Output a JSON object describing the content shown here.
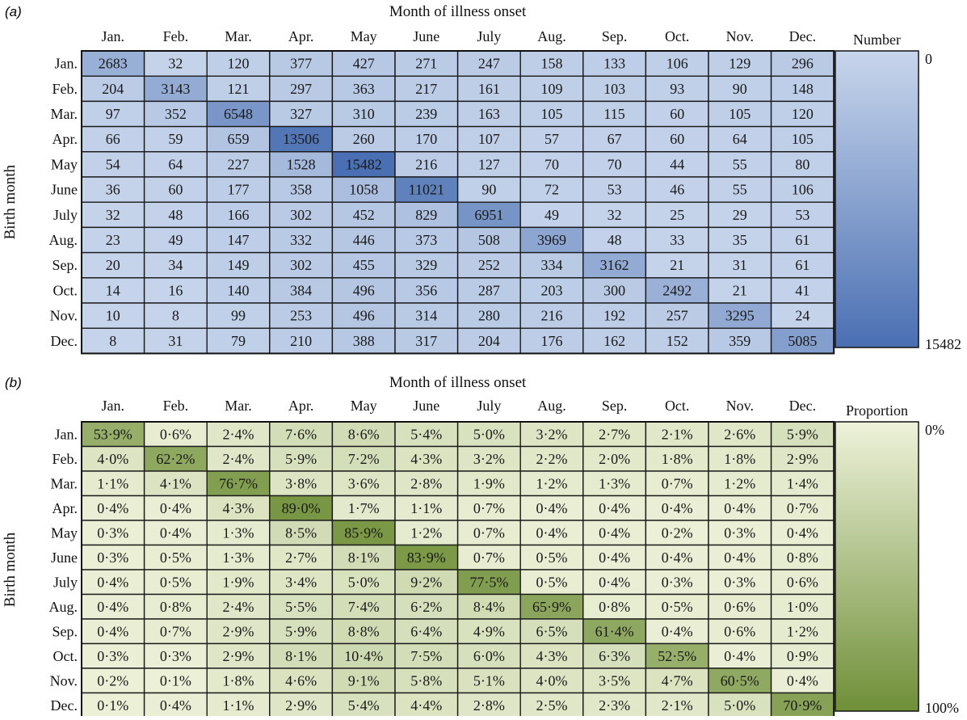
{
  "chart_data": [
    {
      "type": "heatmap",
      "panel_label": "(a)",
      "xlabel": "Month of illness onset",
      "ylabel": "Birth month",
      "x_categories": [
        "Jan.",
        "Feb.",
        "Mar.",
        "Apr.",
        "May",
        "June",
        "July",
        "Aug.",
        "Sep.",
        "Oct.",
        "Nov.",
        "Dec."
      ],
      "y_categories": [
        "Jan.",
        "Feb.",
        "Mar.",
        "Apr.",
        "May",
        "June",
        "July",
        "Aug.",
        "Sep.",
        "Oct.",
        "Nov.",
        "Dec."
      ],
      "values": [
        [
          2683,
          32,
          120,
          377,
          427,
          271,
          247,
          158,
          133,
          106,
          129,
          296
        ],
        [
          204,
          3143,
          121,
          297,
          363,
          217,
          161,
          109,
          103,
          93,
          90,
          148
        ],
        [
          97,
          352,
          6548,
          327,
          310,
          239,
          163,
          105,
          115,
          60,
          105,
          120
        ],
        [
          66,
          59,
          659,
          13506,
          260,
          170,
          107,
          57,
          67,
          60,
          64,
          105
        ],
        [
          54,
          64,
          227,
          1528,
          15482,
          216,
          127,
          70,
          70,
          44,
          55,
          80
        ],
        [
          36,
          60,
          177,
          358,
          1058,
          11021,
          90,
          72,
          53,
          46,
          55,
          106
        ],
        [
          32,
          48,
          166,
          302,
          452,
          829,
          6951,
          49,
          32,
          25,
          29,
          53
        ],
        [
          23,
          49,
          147,
          332,
          446,
          373,
          508,
          3969,
          48,
          33,
          35,
          61
        ],
        [
          20,
          34,
          149,
          302,
          455,
          329,
          252,
          334,
          3162,
          21,
          31,
          61
        ],
        [
          14,
          16,
          140,
          384,
          496,
          356,
          287,
          203,
          300,
          2492,
          21,
          41
        ],
        [
          10,
          8,
          99,
          253,
          496,
          314,
          280,
          216,
          192,
          257,
          3295,
          24
        ],
        [
          8,
          31,
          79,
          210,
          388,
          317,
          204,
          176,
          162,
          152,
          359,
          5085
        ]
      ],
      "value_format": "integer",
      "colorbar": {
        "title": "Number",
        "min_label": "0",
        "max_label": "15482",
        "min": 0,
        "max": 15482
      },
      "colors": {
        "low": "#c8d6ec",
        "high": "#4a6fb2"
      }
    },
    {
      "type": "heatmap",
      "panel_label": "(b)",
      "xlabel": "Month of illness onset",
      "ylabel": "Birth month",
      "x_categories": [
        "Jan.",
        "Feb.",
        "Mar.",
        "Apr.",
        "May",
        "June",
        "July",
        "Aug.",
        "Sep.",
        "Oct.",
        "Nov.",
        "Dec."
      ],
      "y_categories": [
        "Jan.",
        "Feb.",
        "Mar.",
        "Apr.",
        "May",
        "June",
        "July",
        "Aug.",
        "Sep.",
        "Oct.",
        "Nov.",
        "Dec."
      ],
      "values": [
        [
          53.9,
          0.6,
          2.4,
          7.6,
          8.6,
          5.4,
          5.0,
          3.2,
          2.7,
          2.1,
          2.6,
          5.9
        ],
        [
          4.0,
          62.2,
          2.4,
          5.9,
          7.2,
          4.3,
          3.2,
          2.2,
          2.0,
          1.8,
          1.8,
          2.9
        ],
        [
          1.1,
          4.1,
          76.7,
          3.8,
          3.6,
          2.8,
          1.9,
          1.2,
          1.3,
          0.7,
          1.2,
          1.4
        ],
        [
          0.4,
          0.4,
          4.3,
          89.0,
          1.7,
          1.1,
          0.7,
          0.4,
          0.4,
          0.4,
          0.4,
          0.7
        ],
        [
          0.3,
          0.4,
          1.3,
          8.5,
          85.9,
          1.2,
          0.7,
          0.4,
          0.4,
          0.2,
          0.3,
          0.4
        ],
        [
          0.3,
          0.5,
          1.3,
          2.7,
          8.1,
          83.9,
          0.7,
          0.5,
          0.4,
          0.4,
          0.4,
          0.8
        ],
        [
          0.4,
          0.5,
          1.9,
          3.4,
          5.0,
          9.2,
          77.5,
          0.5,
          0.4,
          0.3,
          0.3,
          0.6
        ],
        [
          0.4,
          0.8,
          2.4,
          5.5,
          7.4,
          6.2,
          8.4,
          65.9,
          0.8,
          0.5,
          0.6,
          1.0
        ],
        [
          0.4,
          0.7,
          2.9,
          5.9,
          8.8,
          6.4,
          4.9,
          6.5,
          61.4,
          0.4,
          0.6,
          1.2
        ],
        [
          0.3,
          0.3,
          2.9,
          8.1,
          10.4,
          7.5,
          6.0,
          4.3,
          6.3,
          52.5,
          0.4,
          0.9
        ],
        [
          0.2,
          0.1,
          1.8,
          4.6,
          9.1,
          5.8,
          5.1,
          4.0,
          3.5,
          4.7,
          60.5,
          0.4
        ],
        [
          0.1,
          0.4,
          1.1,
          2.9,
          5.4,
          4.4,
          2.8,
          2.5,
          2.3,
          2.1,
          5.0,
          70.9
        ]
      ],
      "value_format": "percent_middot_1dp",
      "colorbar": {
        "title": "Proportion",
        "min_label": "0%",
        "max_label": "100%",
        "min": 0,
        "max": 100
      },
      "colors": {
        "low": "#eef2da",
        "high": "#6f8f38"
      }
    }
  ]
}
